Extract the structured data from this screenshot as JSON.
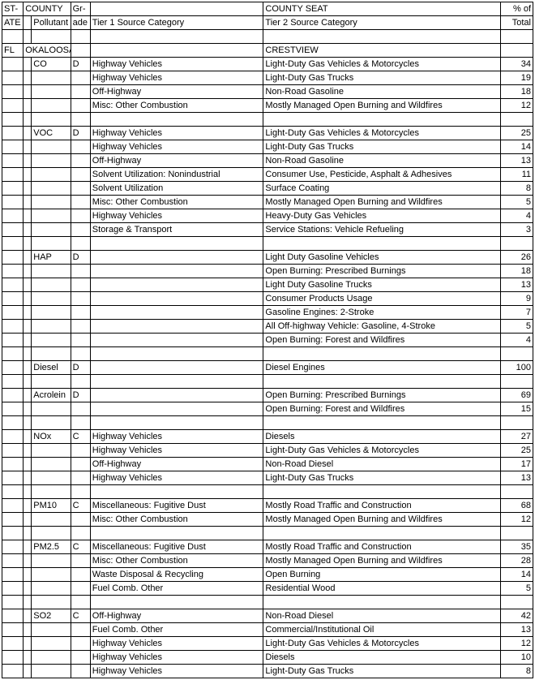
{
  "header": {
    "state_abbr": [
      "ST-",
      "ATE"
    ],
    "county": "COUNTY",
    "pollutant": "Pollutant",
    "grade": [
      "Gr-",
      "ade"
    ],
    "tier1": "Tier 1 Source Category",
    "county_seat": "COUNTY SEAT",
    "tier2": "Tier 2 Source Category",
    "pct": [
      "% of",
      "Total"
    ]
  },
  "rows": [
    {
      "state": "",
      "county": "",
      "pollutant": "",
      "grade": "",
      "tier1": "",
      "tier2": "",
      "pct": ""
    },
    {
      "state": "FL",
      "county": "OKALOOSA",
      "pollutant": "",
      "grade": "",
      "tier1": "",
      "tier2": "CRESTVIEW",
      "pct": ""
    },
    {
      "state": "",
      "county": "",
      "pollutant": "CO",
      "grade": "D",
      "tier1": "Highway Vehicles",
      "tier2": "Light-Duty Gas Vehicles & Motorcycles",
      "pct": "34"
    },
    {
      "state": "",
      "county": "",
      "pollutant": "",
      "grade": "",
      "tier1": "Highway Vehicles",
      "tier2": "Light-Duty Gas Trucks",
      "pct": "19"
    },
    {
      "state": "",
      "county": "",
      "pollutant": "",
      "grade": "",
      "tier1": "Off-Highway",
      "tier2": "Non-Road Gasoline",
      "pct": "18"
    },
    {
      "state": "",
      "county": "",
      "pollutant": "",
      "grade": "",
      "tier1": "Misc: Other Combustion",
      "tier2": "Mostly Managed Open Burning and Wildfires",
      "pct": "12"
    },
    {
      "state": "",
      "county": "",
      "pollutant": "",
      "grade": "",
      "tier1": "",
      "tier2": "",
      "pct": ""
    },
    {
      "state": "",
      "county": "",
      "pollutant": "VOC",
      "grade": "D",
      "tier1": "Highway Vehicles",
      "tier2": "Light-Duty Gas Vehicles & Motorcycles",
      "pct": "25"
    },
    {
      "state": "",
      "county": "",
      "pollutant": "",
      "grade": "",
      "tier1": "Highway Vehicles",
      "tier2": "Light-Duty Gas Trucks",
      "pct": "14"
    },
    {
      "state": "",
      "county": "",
      "pollutant": "",
      "grade": "",
      "tier1": "Off-Highway",
      "tier2": "Non-Road Gasoline",
      "pct": "13"
    },
    {
      "state": "",
      "county": "",
      "pollutant": "",
      "grade": "",
      "tier1": "Solvent Utilization: Nonindustrial",
      "tier2": "Consumer Use, Pesticide, Asphalt & Adhesives",
      "pct": "11"
    },
    {
      "state": "",
      "county": "",
      "pollutant": "",
      "grade": "",
      "tier1": "Solvent Utilization",
      "tier2": "Surface Coating",
      "pct": "8"
    },
    {
      "state": "",
      "county": "",
      "pollutant": "",
      "grade": "",
      "tier1": "Misc: Other Combustion",
      "tier2": "Mostly Managed Open Burning and Wildfires",
      "pct": "5"
    },
    {
      "state": "",
      "county": "",
      "pollutant": "",
      "grade": "",
      "tier1": "Highway Vehicles",
      "tier2": "Heavy-Duty Gas Vehicles",
      "pct": "4"
    },
    {
      "state": "",
      "county": "",
      "pollutant": "",
      "grade": "",
      "tier1": "Storage & Transport",
      "tier2": "Service Stations: Vehicle Refueling",
      "pct": "3"
    },
    {
      "state": "",
      "county": "",
      "pollutant": "",
      "grade": "",
      "tier1": "",
      "tier2": "",
      "pct": ""
    },
    {
      "state": "",
      "county": "",
      "pollutant": "HAP",
      "grade": "D",
      "tier1": "",
      "tier2": "Light Duty Gasoline Vehicles",
      "pct": "26"
    },
    {
      "state": "",
      "county": "",
      "pollutant": "",
      "grade": "",
      "tier1": "",
      "tier2": "Open Burning:  Prescribed Burnings",
      "pct": "18"
    },
    {
      "state": "",
      "county": "",
      "pollutant": "",
      "grade": "",
      "tier1": "",
      "tier2": "Light Duty Gasoline Trucks",
      "pct": "13"
    },
    {
      "state": "",
      "county": "",
      "pollutant": "",
      "grade": "",
      "tier1": "",
      "tier2": "Consumer Products Usage",
      "pct": "9"
    },
    {
      "state": "",
      "county": "",
      "pollutant": "",
      "grade": "",
      "tier1": "",
      "tier2": "Gasoline Engines: 2-Stroke",
      "pct": "7"
    },
    {
      "state": "",
      "county": "",
      "pollutant": "",
      "grade": "",
      "tier1": "",
      "tier2": "All Off-highway Vehicle: Gasoline, 4-Stroke",
      "pct": "5"
    },
    {
      "state": "",
      "county": "",
      "pollutant": "",
      "grade": "",
      "tier1": "",
      "tier2": "Open Burning:  Forest and Wildfires",
      "pct": "4"
    },
    {
      "state": "",
      "county": "",
      "pollutant": "",
      "grade": "",
      "tier1": "",
      "tier2": "",
      "pct": ""
    },
    {
      "state": "",
      "county": "",
      "pollutant": "Diesel",
      "grade": "D",
      "tier1": "",
      "tier2": "Diesel Engines",
      "pct": "100"
    },
    {
      "state": "",
      "county": "",
      "pollutant": "",
      "grade": "",
      "tier1": "",
      "tier2": "",
      "pct": ""
    },
    {
      "state": "",
      "county": "",
      "pollutant": "Acrolein",
      "grade": "D",
      "tier1": "",
      "tier2": "Open Burning:  Prescribed Burnings",
      "pct": "69"
    },
    {
      "state": "",
      "county": "",
      "pollutant": "",
      "grade": "",
      "tier1": "",
      "tier2": "Open Burning:  Forest and Wildfires",
      "pct": "15"
    },
    {
      "state": "",
      "county": "",
      "pollutant": "",
      "grade": "",
      "tier1": "",
      "tier2": "",
      "pct": ""
    },
    {
      "state": "",
      "county": "",
      "pollutant": "NOx",
      "grade": "C",
      "tier1": "Highway Vehicles",
      "tier2": "Diesels",
      "pct": "27"
    },
    {
      "state": "",
      "county": "",
      "pollutant": "",
      "grade": "",
      "tier1": "Highway Vehicles",
      "tier2": "Light-Duty Gas Vehicles & Motorcycles",
      "pct": "25"
    },
    {
      "state": "",
      "county": "",
      "pollutant": "",
      "grade": "",
      "tier1": "Off-Highway",
      "tier2": "Non-Road Diesel",
      "pct": "17"
    },
    {
      "state": "",
      "county": "",
      "pollutant": "",
      "grade": "",
      "tier1": "Highway Vehicles",
      "tier2": "Light-Duty Gas Trucks",
      "pct": "13"
    },
    {
      "state": "",
      "county": "",
      "pollutant": "",
      "grade": "",
      "tier1": "",
      "tier2": "",
      "pct": ""
    },
    {
      "state": "",
      "county": "",
      "pollutant": "PM10",
      "grade": "C",
      "tier1": "Miscellaneous: Fugitive Dust",
      "tier2": "Mostly Road Traffic and Construction",
      "pct": "68"
    },
    {
      "state": "",
      "county": "",
      "pollutant": "",
      "grade": "",
      "tier1": "Misc: Other Combustion",
      "tier2": "Mostly Managed Open Burning and Wildfires",
      "pct": "12"
    },
    {
      "state": "",
      "county": "",
      "pollutant": "",
      "grade": "",
      "tier1": "",
      "tier2": "",
      "pct": ""
    },
    {
      "state": "",
      "county": "",
      "pollutant": "PM2.5",
      "grade": "C",
      "tier1": "Miscellaneous: Fugitive Dust",
      "tier2": "Mostly Road Traffic and Construction",
      "pct": "35"
    },
    {
      "state": "",
      "county": "",
      "pollutant": "",
      "grade": "",
      "tier1": "Misc: Other Combustion",
      "tier2": "Mostly Managed Open Burning and Wildfires",
      "pct": "28"
    },
    {
      "state": "",
      "county": "",
      "pollutant": "",
      "grade": "",
      "tier1": "Waste Disposal & Recycling",
      "tier2": "Open Burning",
      "pct": "14"
    },
    {
      "state": "",
      "county": "",
      "pollutant": "",
      "grade": "",
      "tier1": "Fuel Comb. Other",
      "tier2": "Residential Wood",
      "pct": "5"
    },
    {
      "state": "",
      "county": "",
      "pollutant": "",
      "grade": "",
      "tier1": "",
      "tier2": "",
      "pct": ""
    },
    {
      "state": "",
      "county": "",
      "pollutant": "SO2",
      "grade": "C",
      "tier1": "Off-Highway",
      "tier2": "Non-Road Diesel",
      "pct": "42"
    },
    {
      "state": "",
      "county": "",
      "pollutant": "",
      "grade": "",
      "tier1": "Fuel Comb. Other",
      "tier2": "Commercial/Institutional Oil",
      "pct": "13"
    },
    {
      "state": "",
      "county": "",
      "pollutant": "",
      "grade": "",
      "tier1": "Highway Vehicles",
      "tier2": "Light-Duty Gas Vehicles & Motorcycles",
      "pct": "12"
    },
    {
      "state": "",
      "county": "",
      "pollutant": "",
      "grade": "",
      "tier1": "Highway Vehicles",
      "tier2": "Diesels",
      "pct": "10"
    },
    {
      "state": "",
      "county": "",
      "pollutant": "",
      "grade": "",
      "tier1": "Highway Vehicles",
      "tier2": "Light-Duty Gas Trucks",
      "pct": "8"
    }
  ]
}
